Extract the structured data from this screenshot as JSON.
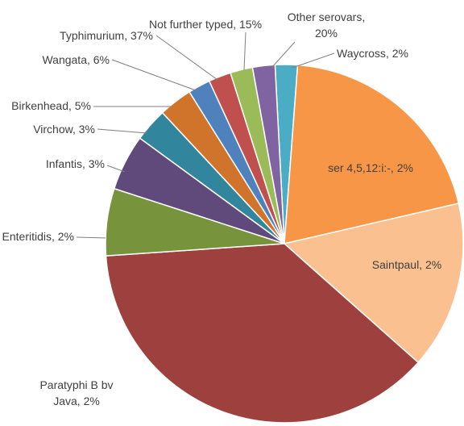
{
  "chart_data": {
    "type": "pie",
    "categories": [
      "Waycross",
      "Other serovars",
      "Not further typed",
      "Typhimurium",
      "Wangata",
      "Birkenhead",
      "Virchow",
      "Infantis",
      "Enteritidis",
      "ser 4,5,12:i:-",
      "Saintpaul",
      "Paratyphi B bv Java"
    ],
    "values": [
      2,
      20,
      15,
      37,
      6,
      5,
      3,
      3,
      2,
      2,
      2,
      2
    ],
    "value_labels": [
      "2%",
      "20%",
      "15%",
      "37%",
      "6%",
      "5%",
      "3%",
      "3%",
      "2%",
      "2%",
      "2%",
      "2%"
    ],
    "label_separator": ", ",
    "colors": [
      "#4bacc6",
      "#f79646",
      "#fac090",
      "#9e413e",
      "#77933c",
      "#604a7b",
      "#31859c",
      "#d0742c",
      "#4f81bd",
      "#c0504d",
      "#9bbb59",
      "#8064a2"
    ]
  }
}
